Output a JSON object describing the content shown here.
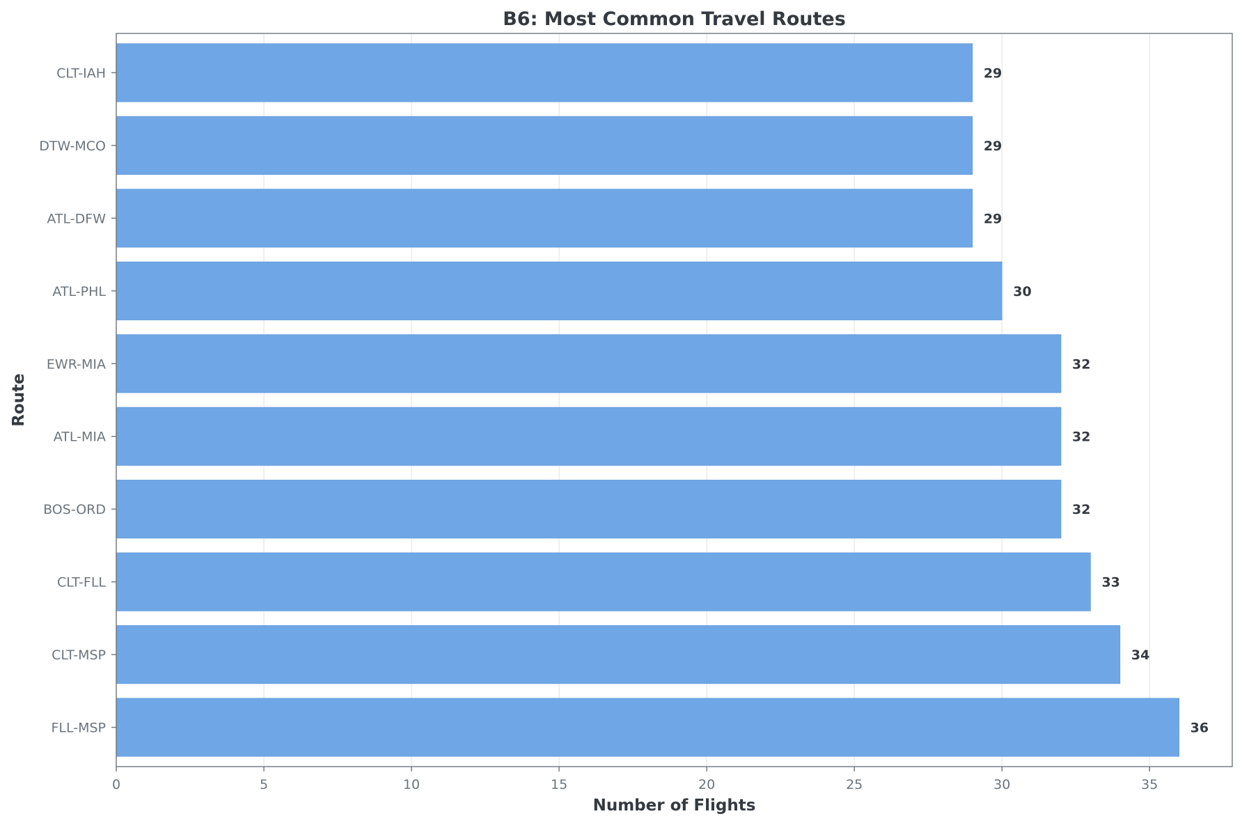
{
  "chart_data": {
    "type": "bar",
    "orientation": "horizontal",
    "title": "B6: Most Common Travel Routes",
    "xlabel": "Number of Flights",
    "ylabel": "Route",
    "categories": [
      "CLT-IAH",
      "DTW-MCO",
      "ATL-DFW",
      "ATL-PHL",
      "EWR-MIA",
      "ATL-MIA",
      "BOS-ORD",
      "CLT-FLL",
      "CLT-MSP",
      "FLL-MSP"
    ],
    "values": [
      29,
      29,
      29,
      30,
      32,
      32,
      32,
      33,
      34,
      36
    ],
    "data_labels": [
      "29",
      "29",
      "29",
      "30",
      "32",
      "32",
      "32",
      "33",
      "34",
      "36"
    ],
    "xlim": [
      0,
      37.8
    ],
    "xticks": [
      0,
      5,
      10,
      15,
      20,
      25,
      30,
      35
    ],
    "xtick_labels": [
      "0",
      "5",
      "10",
      "15",
      "20",
      "25",
      "30",
      "35"
    ],
    "grid": "vertical",
    "bar_color": "#6fa6e6"
  }
}
